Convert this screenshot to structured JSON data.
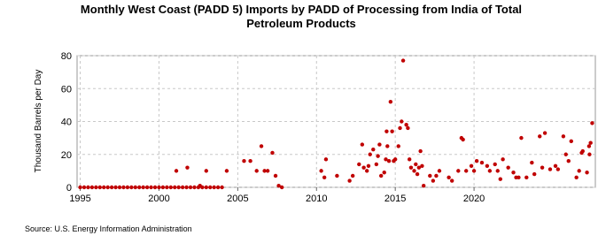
{
  "chart_data": {
    "type": "scatter",
    "title": "Monthly West Coast (PADD 5) Imports by PADD of Processing from India of Total Petroleum Products",
    "y_label": "Thousand Barrels per Day",
    "source": "Source: U.S. Energy Information Administration",
    "color": "#c00000",
    "grid": true,
    "xlim": [
      1994.8,
      2027.7
    ],
    "xticks": [
      1995,
      2000,
      2005,
      2010,
      2015,
      2020
    ],
    "ylim": [
      0,
      80
    ],
    "yticks": [
      0,
      20,
      40,
      60,
      80
    ],
    "x": [
      1995,
      1995.25,
      1995.5,
      1995.75,
      1996,
      1996.25,
      1996.5,
      1996.75,
      1997,
      1997.25,
      1997.5,
      1997.75,
      1998,
      1998.25,
      1998.5,
      1998.75,
      1999,
      1999.25,
      1999.5,
      1999.75,
      2000,
      2000.25,
      2000.5,
      2000.75,
      2001,
      2001.25,
      2001.5,
      2001.75,
      2002,
      2002.25,
      2002.5,
      2002.75,
      2003,
      2003.25,
      2003.5,
      2003.75,
      2004,
      2001.1,
      2001.8,
      2002.6,
      2003.0,
      2004.3,
      2005.4,
      2005.8,
      2006.2,
      2006.5,
      2006.7,
      2006.9,
      2007.2,
      2007.4,
      2007.6,
      2007.8,
      2010.3,
      2010.5,
      2010.6,
      2011.3,
      2012.1,
      2012.3,
      2012.7,
      2012.9,
      2013.0,
      2013.2,
      2013.3,
      2013.4,
      2013.6,
      2013.8,
      2013.9,
      2014.0,
      2014.1,
      2014.3,
      2014.4,
      2014.45,
      2014.5,
      2014.6,
      2014.7,
      2014.8,
      2014.9,
      2015.0,
      2015.2,
      2015.3,
      2015.4,
      2015.5,
      2015.7,
      2015.8,
      2015.9,
      2016.0,
      2016.2,
      2016.3,
      2016.4,
      2016.5,
      2016.6,
      2016.7,
      2016.8,
      2017.2,
      2017.4,
      2017.6,
      2017.8,
      2018.4,
      2018.6,
      2019.0,
      2019.2,
      2019.3,
      2019.5,
      2019.83,
      2020.0,
      2020.17,
      2020.5,
      2020.83,
      2021.0,
      2021.33,
      2021.5,
      2021.67,
      2021.83,
      2022.17,
      2022.5,
      2022.67,
      2022.83,
      2023.0,
      2023.33,
      2023.67,
      2023.83,
      2024.17,
      2024.33,
      2024.5,
      2024.83,
      2025.17,
      2025.33,
      2025.67,
      2025.83,
      2026.0,
      2026.17,
      2026.5,
      2026.67,
      2026.83,
      2026.9,
      2027.17,
      2027.3,
      2027.33,
      2027.4,
      2027.5
    ],
    "values": [
      0,
      0,
      0,
      0,
      0,
      0,
      0,
      0,
      0,
      0,
      0,
      0,
      0,
      0,
      0,
      0,
      0,
      0,
      0,
      0,
      0,
      0,
      0,
      0,
      0,
      0,
      0,
      0,
      0,
      0,
      0,
      0,
      0,
      0,
      0,
      0,
      0,
      10,
      12,
      1,
      10,
      10,
      16,
      16,
      10,
      25,
      10,
      10,
      21,
      7,
      1,
      0,
      10,
      6,
      17,
      7,
      4,
      7,
      14,
      26,
      12,
      10,
      13,
      20,
      23,
      14,
      19,
      26,
      7,
      9,
      17,
      34,
      25,
      16,
      52,
      34,
      16,
      17,
      25,
      36,
      40,
      77,
      38,
      36,
      17,
      12,
      10,
      14,
      8,
      12,
      22,
      13,
      1,
      7,
      4,
      7,
      10,
      6,
      4,
      10,
      30,
      29,
      10,
      13,
      10,
      16,
      15,
      13,
      10,
      14,
      10,
      5,
      17,
      12,
      9,
      6,
      6,
      30,
      6,
      15,
      8,
      31,
      12,
      33,
      11,
      13,
      11,
      31,
      20,
      16,
      28,
      6,
      10,
      21,
      22,
      9,
      25,
      20,
      27,
      39
    ]
  }
}
